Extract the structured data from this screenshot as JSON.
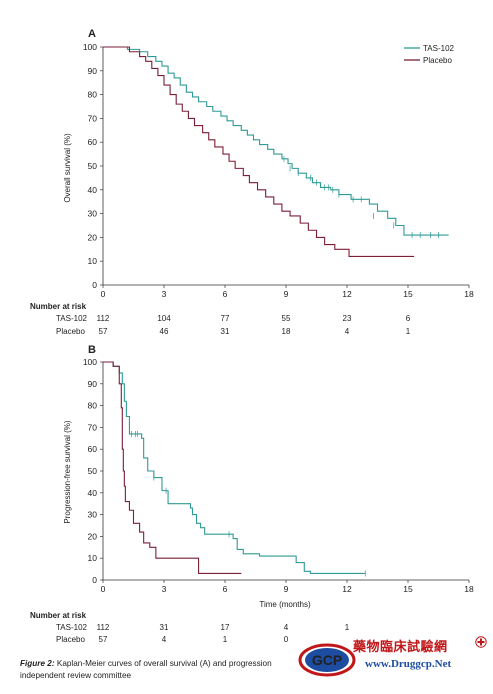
{
  "caption": {
    "label": "Figure 2:",
    "text": "Kaplan-Meier curves of overall survival (A) and progression",
    "line2": "independent review committee"
  },
  "watermark": {
    "logo_text": "GCP",
    "chinese": "藥物臨床試驗網",
    "url": "www.Druggcp.Net"
  },
  "colors": {
    "tas102": "#2f9a96",
    "placebo": "#7a1f36"
  },
  "chart_data": [
    {
      "panel": "A",
      "type": "line",
      "title": "",
      "xlabel": "",
      "ylabel": "Overall survival (%)",
      "xlim": [
        0,
        18
      ],
      "ylim": [
        0,
        100
      ],
      "xticks": [
        0,
        3,
        6,
        9,
        12,
        15,
        18
      ],
      "yticks": [
        0,
        10,
        20,
        30,
        40,
        50,
        60,
        70,
        80,
        90,
        100
      ],
      "legend": {
        "placement": "top-right",
        "entries": [
          "TAS-102",
          "Placebo"
        ]
      },
      "series": [
        {
          "name": "TAS-102",
          "color": "#2f9a96",
          "steps": [
            [
              0,
              100
            ],
            [
              1.2,
              99
            ],
            [
              1.8,
              98
            ],
            [
              2.2,
              96
            ],
            [
              2.6,
              94
            ],
            [
              2.9,
              92
            ],
            [
              3.2,
              89
            ],
            [
              3.5,
              87
            ],
            [
              3.8,
              84
            ],
            [
              4.1,
              81
            ],
            [
              4.4,
              79
            ],
            [
              4.7,
              77
            ],
            [
              5.1,
              75
            ],
            [
              5.4,
              73
            ],
            [
              5.8,
              71
            ],
            [
              6.1,
              69
            ],
            [
              6.4,
              67
            ],
            [
              6.8,
              65
            ],
            [
              7.1,
              63
            ],
            [
              7.4,
              61
            ],
            [
              7.7,
              59
            ],
            [
              8.1,
              57
            ],
            [
              8.4,
              55
            ],
            [
              8.8,
              53
            ],
            [
              9.1,
              51
            ],
            [
              9.3,
              49
            ],
            [
              9.6,
              47
            ],
            [
              10.0,
              45
            ],
            [
              10.3,
              43
            ],
            [
              10.7,
              41
            ],
            [
              11.2,
              40
            ],
            [
              11.6,
              38
            ],
            [
              12.2,
              36
            ],
            [
              13.1,
              34
            ],
            [
              13.5,
              31
            ],
            [
              14.0,
              28
            ],
            [
              14.4,
              25
            ],
            [
              14.8,
              21
            ],
            [
              17.0,
              21
            ]
          ],
          "censored": [
            [
              8.9,
              53
            ],
            [
              9.2,
              49
            ],
            [
              9.6,
              47
            ],
            [
              10.2,
              45
            ],
            [
              10.5,
              43
            ],
            [
              10.9,
              41
            ],
            [
              11.1,
              41
            ],
            [
              11.3,
              40
            ],
            [
              11.6,
              38
            ],
            [
              12.3,
              36
            ],
            [
              12.7,
              36
            ],
            [
              13.3,
              29
            ],
            [
              14.3,
              25
            ],
            [
              15.2,
              21
            ],
            [
              15.6,
              21
            ],
            [
              16.1,
              21
            ],
            [
              16.5,
              21
            ]
          ]
        },
        {
          "name": "Placebo",
          "color": "#7a1f36",
          "steps": [
            [
              0,
              100
            ],
            [
              1.3,
              98
            ],
            [
              1.8,
              96
            ],
            [
              2.1,
              94
            ],
            [
              2.4,
              91
            ],
            [
              2.7,
              88
            ],
            [
              3.0,
              84
            ],
            [
              3.3,
              80
            ],
            [
              3.6,
              76
            ],
            [
              3.9,
              73
            ],
            [
              4.2,
              70
            ],
            [
              4.5,
              67
            ],
            [
              4.9,
              64
            ],
            [
              5.2,
              61
            ],
            [
              5.5,
              58
            ],
            [
              5.9,
              55
            ],
            [
              6.2,
              52
            ],
            [
              6.5,
              49
            ],
            [
              6.9,
              46
            ],
            [
              7.2,
              43
            ],
            [
              7.6,
              40
            ],
            [
              8.0,
              37
            ],
            [
              8.4,
              34
            ],
            [
              8.8,
              31
            ],
            [
              9.2,
              29
            ],
            [
              9.7,
              26
            ],
            [
              10.1,
              23
            ],
            [
              10.5,
              20
            ],
            [
              10.9,
              17
            ],
            [
              11.4,
              15
            ],
            [
              12.1,
              12
            ],
            [
              15.3,
              12
            ]
          ]
        }
      ],
      "risk_table": {
        "title": "Number at risk",
        "rows": [
          {
            "label": "TAS-102",
            "values": [
              "112",
              "104",
              "77",
              "55",
              "23",
              "6"
            ]
          },
          {
            "label": "Placebo",
            "values": [
              "57",
              "46",
              "31",
              "18",
              "4",
              "1"
            ]
          }
        ]
      }
    },
    {
      "panel": "B",
      "type": "line",
      "title": "",
      "xlabel": "Time (months)",
      "ylabel": "Progression-free survival (%)",
      "xlim": [
        0,
        18
      ],
      "ylim": [
        0,
        100
      ],
      "xticks": [
        0,
        3,
        6,
        9,
        12,
        15,
        18
      ],
      "yticks": [
        0,
        10,
        20,
        30,
        40,
        50,
        60,
        70,
        80,
        90,
        100
      ],
      "series": [
        {
          "name": "TAS-102",
          "color": "#2f9a96",
          "steps": [
            [
              0,
              100
            ],
            [
              0.5,
              98
            ],
            [
              0.8,
              95
            ],
            [
              0.95,
              90
            ],
            [
              1.05,
              82
            ],
            [
              1.15,
              75
            ],
            [
              1.3,
              67
            ],
            [
              1.9,
              65
            ],
            [
              2.0,
              56
            ],
            [
              2.2,
              50
            ],
            [
              2.5,
              47
            ],
            [
              2.9,
              41
            ],
            [
              3.2,
              35
            ],
            [
              4.3,
              33
            ],
            [
              4.4,
              30
            ],
            [
              4.6,
              26
            ],
            [
              4.8,
              24
            ],
            [
              5.0,
              21
            ],
            [
              6.4,
              19
            ],
            [
              6.6,
              14
            ],
            [
              6.9,
              12
            ],
            [
              7.7,
              11
            ],
            [
              9.5,
              8
            ],
            [
              9.9,
              4
            ],
            [
              10.2,
              3
            ],
            [
              12.9,
              3
            ]
          ],
          "censored": [
            [
              1.4,
              67
            ],
            [
              1.6,
              67
            ],
            [
              1.7,
              67
            ],
            [
              2.5,
              47
            ],
            [
              3.1,
              41
            ],
            [
              6.2,
              21
            ],
            [
              12.9,
              3
            ]
          ]
        },
        {
          "name": "Placebo",
          "color": "#7a1f36",
          "steps": [
            [
              0,
              100
            ],
            [
              0.5,
              98
            ],
            [
              0.8,
              90
            ],
            [
              0.9,
              79
            ],
            [
              0.95,
              60
            ],
            [
              1.0,
              50
            ],
            [
              1.05,
              43
            ],
            [
              1.1,
              36
            ],
            [
              1.3,
              32
            ],
            [
              1.5,
              26
            ],
            [
              1.8,
              22
            ],
            [
              2.0,
              17
            ],
            [
              2.3,
              15
            ],
            [
              2.6,
              10
            ],
            [
              4.4,
              10
            ],
            [
              4.7,
              3
            ],
            [
              6.8,
              3
            ]
          ]
        }
      ],
      "risk_table": {
        "title": "Number at risk",
        "rows": [
          {
            "label": "TAS-102",
            "values": [
              "112",
              "31",
              "17",
              "4",
              "1"
            ]
          },
          {
            "label": "Placebo",
            "values": [
              "57",
              "4",
              "1",
              "0",
              ""
            ]
          }
        ]
      }
    }
  ]
}
